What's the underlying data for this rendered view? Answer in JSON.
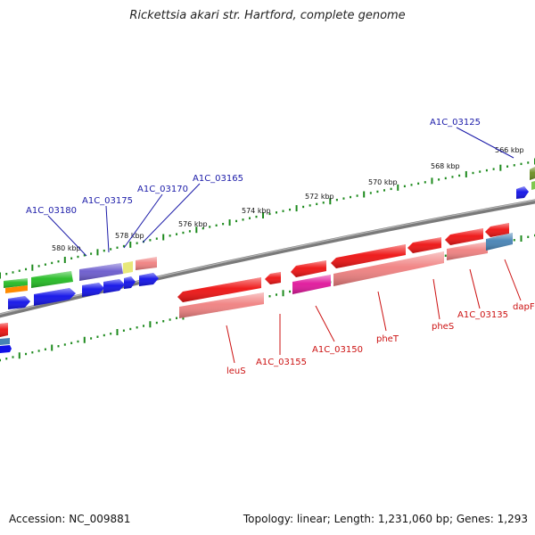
{
  "title": "Rickettsia akari str. Hartford, complete genome",
  "footer": {
    "accession": "Accession: NC_009881",
    "info": "Topology: linear; Length: 1,231,060 bp; Genes: 1,293"
  },
  "colors": {
    "backbone": "#808080",
    "ticks": "#1d8a1d",
    "top_labels": "#1a1aa8",
    "bottom_labels": "#cc1111"
  },
  "scale_labels": [
    "566 kbp",
    "568 kbp",
    "570 kbp",
    "572 kbp",
    "574 kbp",
    "576 kbp",
    "578 kbp",
    "580 kbp"
  ],
  "top_gene_labels": [
    "A1C_03125",
    "A1C_03165",
    "A1C_03170",
    "A1C_03175",
    "A1C_03180"
  ],
  "bottom_gene_labels": [
    "dapF",
    "A1C_03135",
    "pheS",
    "pheT",
    "A1C_03150",
    "A1C_03155",
    "leuS"
  ]
}
